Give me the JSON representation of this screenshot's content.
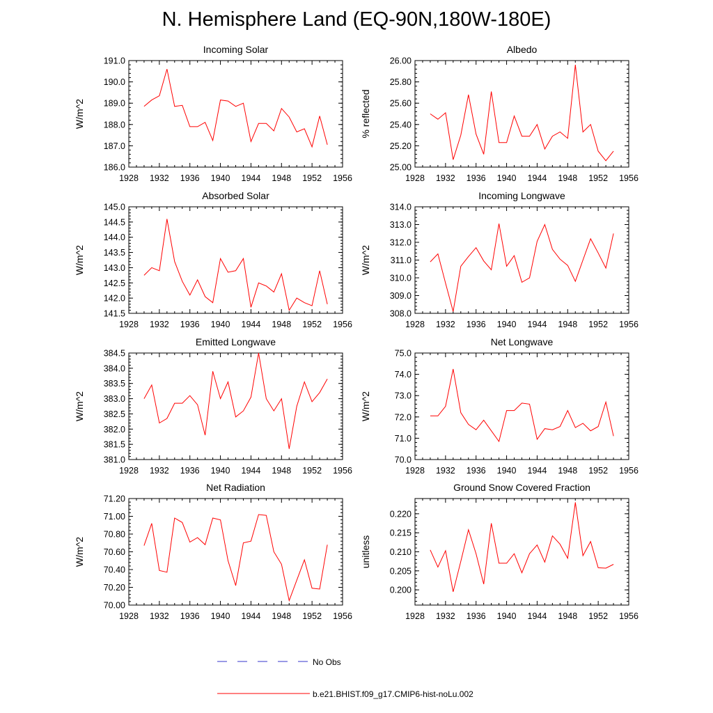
{
  "page": {
    "title": "N. Hemisphere Land (EQ-90N,180W-180E)"
  },
  "legend": {
    "entries": [
      {
        "label": "No Obs",
        "color": "#3333cc",
        "dash": true
      },
      {
        "label": "b.e21.BHIST.f09_g17.CMIP6-hist-noLu.002",
        "color": "#ff0000",
        "dash": false
      }
    ]
  },
  "chart_data": [
    {
      "type": "line",
      "title": "Incoming Solar",
      "ylabel": "W/m^2",
      "xlim": [
        1928,
        1956
      ],
      "xticks": [
        1928,
        1932,
        1936,
        1940,
        1944,
        1948,
        1952,
        1956
      ],
      "ylim": [
        186.0,
        191.0
      ],
      "yticks": [
        "186.0",
        "187.0",
        "188.0",
        "189.0",
        "190.0",
        "191.0"
      ],
      "x": [
        1930,
        1931,
        1932,
        1933,
        1934,
        1935,
        1936,
        1937,
        1938,
        1939,
        1940,
        1941,
        1942,
        1943,
        1944,
        1945,
        1946,
        1947,
        1948,
        1949,
        1950,
        1951,
        1952,
        1953,
        1954
      ],
      "series": [
        {
          "color": "#ff0000",
          "values": [
            188.85,
            189.15,
            189.35,
            190.6,
            188.85,
            188.9,
            187.9,
            187.9,
            188.1,
            187.25,
            189.15,
            189.1,
            188.85,
            189.0,
            187.2,
            188.05,
            188.05,
            187.7,
            188.75,
            188.35,
            187.65,
            187.8,
            186.95,
            188.4,
            187.05
          ]
        }
      ]
    },
    {
      "type": "line",
      "title": "Albedo",
      "ylabel": "% reflected",
      "xlim": [
        1928,
        1956
      ],
      "xticks": [
        1928,
        1932,
        1936,
        1940,
        1944,
        1948,
        1952,
        1956
      ],
      "ylim": [
        25.0,
        26.0
      ],
      "yticks": [
        "25.00",
        "25.20",
        "25.40",
        "25.60",
        "25.80",
        "26.00"
      ],
      "x": [
        1930,
        1931,
        1932,
        1933,
        1934,
        1935,
        1936,
        1937,
        1938,
        1939,
        1940,
        1941,
        1942,
        1943,
        1944,
        1945,
        1946,
        1947,
        1948,
        1949,
        1950,
        1951,
        1952,
        1953,
        1954
      ],
      "series": [
        {
          "color": "#ff0000",
          "values": [
            25.5,
            25.45,
            25.51,
            25.07,
            25.3,
            25.68,
            25.31,
            25.12,
            25.71,
            25.23,
            25.23,
            25.48,
            25.29,
            25.29,
            25.4,
            25.17,
            25.29,
            25.33,
            25.27,
            25.96,
            25.33,
            25.4,
            25.15,
            25.06,
            25.15
          ]
        }
      ]
    },
    {
      "type": "line",
      "title": "Absorbed Solar",
      "ylabel": "W/m^2",
      "xlim": [
        1928,
        1956
      ],
      "xticks": [
        1928,
        1932,
        1936,
        1940,
        1944,
        1948,
        1952,
        1956
      ],
      "ylim": [
        141.5,
        145.0
      ],
      "yticks": [
        "141.5",
        "142.0",
        "142.5",
        "143.0",
        "143.5",
        "144.0",
        "144.5",
        "145.0"
      ],
      "x": [
        1930,
        1931,
        1932,
        1933,
        1934,
        1935,
        1936,
        1937,
        1938,
        1939,
        1940,
        1941,
        1942,
        1943,
        1944,
        1945,
        1946,
        1947,
        1948,
        1949,
        1950,
        1951,
        1952,
        1953,
        1954
      ],
      "series": [
        {
          "color": "#ff0000",
          "values": [
            142.75,
            143.0,
            142.9,
            144.6,
            143.2,
            142.55,
            142.1,
            142.6,
            142.05,
            141.85,
            143.3,
            142.85,
            142.9,
            143.3,
            141.7,
            142.5,
            142.4,
            142.2,
            142.8,
            141.6,
            142.0,
            141.85,
            141.75,
            142.9,
            141.8
          ]
        }
      ]
    },
    {
      "type": "line",
      "title": "Incoming Longwave",
      "ylabel": "W/m^2",
      "xlim": [
        1928,
        1956
      ],
      "xticks": [
        1928,
        1932,
        1936,
        1940,
        1944,
        1948,
        1952,
        1956
      ],
      "ylim": [
        308.0,
        314.0
      ],
      "yticks": [
        "308.0",
        "309.0",
        "310.0",
        "311.0",
        "312.0",
        "313.0",
        "314.0"
      ],
      "x": [
        1930,
        1931,
        1932,
        1933,
        1934,
        1935,
        1936,
        1937,
        1938,
        1939,
        1940,
        1941,
        1942,
        1943,
        1944,
        1945,
        1946,
        1947,
        1948,
        1949,
        1950,
        1951,
        1952,
        1953,
        1954
      ],
      "series": [
        {
          "color": "#ff0000",
          "values": [
            310.9,
            311.35,
            309.7,
            308.1,
            310.65,
            311.2,
            311.7,
            310.95,
            310.45,
            313.05,
            310.65,
            311.25,
            309.75,
            310.0,
            312.05,
            313.0,
            311.6,
            311.05,
            310.7,
            309.8,
            311.0,
            312.2,
            311.4,
            310.55,
            312.5
          ]
        }
      ]
    },
    {
      "type": "line",
      "title": "Emitted Longwave",
      "ylabel": "W/m^2",
      "xlim": [
        1928,
        1956
      ],
      "xticks": [
        1928,
        1932,
        1936,
        1940,
        1944,
        1948,
        1952,
        1956
      ],
      "ylim": [
        381.0,
        384.5
      ],
      "yticks": [
        "381.0",
        "381.5",
        "382.0",
        "382.5",
        "383.0",
        "383.5",
        "384.0",
        "384.5"
      ],
      "x": [
        1930,
        1931,
        1932,
        1933,
        1934,
        1935,
        1936,
        1937,
        1938,
        1939,
        1940,
        1941,
        1942,
        1943,
        1944,
        1945,
        1946,
        1947,
        1948,
        1949,
        1950,
        1951,
        1952,
        1953,
        1954
      ],
      "series": [
        {
          "color": "#ff0000",
          "values": [
            383.0,
            383.45,
            382.2,
            382.35,
            382.85,
            382.85,
            383.1,
            382.8,
            381.8,
            383.9,
            383.0,
            383.55,
            382.4,
            382.6,
            383.05,
            384.5,
            383.0,
            382.6,
            383.0,
            381.35,
            382.75,
            383.55,
            382.9,
            383.2,
            383.65
          ]
        }
      ]
    },
    {
      "type": "line",
      "title": "Net Longwave",
      "ylabel": "W/m^2",
      "xlim": [
        1928,
        1956
      ],
      "xticks": [
        1928,
        1932,
        1936,
        1940,
        1944,
        1948,
        1952,
        1956
      ],
      "ylim": [
        70.0,
        75.0
      ],
      "yticks": [
        "70.0",
        "71.0",
        "72.0",
        "73.0",
        "74.0",
        "75.0"
      ],
      "x": [
        1930,
        1931,
        1932,
        1933,
        1934,
        1935,
        1936,
        1937,
        1938,
        1939,
        1940,
        1941,
        1942,
        1943,
        1944,
        1945,
        1946,
        1947,
        1948,
        1949,
        1950,
        1951,
        1952,
        1953,
        1954
      ],
      "series": [
        {
          "color": "#ff0000",
          "values": [
            72.05,
            72.05,
            72.5,
            74.25,
            72.2,
            71.65,
            71.4,
            71.85,
            71.35,
            70.85,
            72.3,
            72.3,
            72.65,
            72.6,
            70.95,
            71.45,
            71.4,
            71.55,
            72.3,
            71.5,
            71.7,
            71.35,
            71.55,
            72.7,
            71.1
          ]
        }
      ]
    },
    {
      "type": "line",
      "title": "Net Radiation",
      "ylabel": "W/m^2",
      "xlim": [
        1928,
        1956
      ],
      "xticks": [
        1928,
        1932,
        1936,
        1940,
        1944,
        1948,
        1952,
        1956
      ],
      "ylim": [
        70.0,
        71.2
      ],
      "yticks": [
        "70.00",
        "70.20",
        "70.40",
        "70.60",
        "70.80",
        "71.00",
        "71.20"
      ],
      "x": [
        1930,
        1931,
        1932,
        1933,
        1934,
        1935,
        1936,
        1937,
        1938,
        1939,
        1940,
        1941,
        1942,
        1943,
        1944,
        1945,
        1946,
        1947,
        1948,
        1949,
        1950,
        1951,
        1952,
        1953,
        1954
      ],
      "series": [
        {
          "color": "#ff0000",
          "values": [
            70.67,
            70.92,
            70.39,
            70.37,
            70.98,
            70.93,
            70.71,
            70.76,
            70.68,
            70.98,
            70.96,
            70.5,
            70.22,
            70.7,
            70.72,
            71.02,
            71.01,
            70.6,
            70.46,
            70.05,
            70.28,
            70.51,
            70.19,
            70.18,
            70.68
          ]
        }
      ]
    },
    {
      "type": "line",
      "title": "Ground Snow Covered Fraction",
      "ylabel": "unitless",
      "xlim": [
        1928,
        1956
      ],
      "xticks": [
        1928,
        1932,
        1936,
        1940,
        1944,
        1948,
        1952,
        1956
      ],
      "ylim": [
        0.196,
        0.224
      ],
      "yticks": [
        "0.200",
        "0.205",
        "0.210",
        "0.215",
        "0.220"
      ],
      "ytick_values": [
        0.2,
        0.205,
        0.21,
        0.215,
        0.22
      ],
      "x": [
        1930,
        1931,
        1932,
        1933,
        1934,
        1935,
        1936,
        1937,
        1938,
        1939,
        1940,
        1941,
        1942,
        1943,
        1944,
        1945,
        1946,
        1947,
        1948,
        1949,
        1950,
        1951,
        1952,
        1953,
        1954
      ],
      "series": [
        {
          "color": "#ff0000",
          "values": [
            0.2105,
            0.206,
            0.2103,
            0.1995,
            0.2075,
            0.2158,
            0.2095,
            0.2015,
            0.2175,
            0.207,
            0.207,
            0.2095,
            0.2045,
            0.2095,
            0.2118,
            0.2073,
            0.2142,
            0.212,
            0.2083,
            0.223,
            0.209,
            0.2127,
            0.2058,
            0.2057,
            0.2067
          ]
        }
      ]
    }
  ]
}
